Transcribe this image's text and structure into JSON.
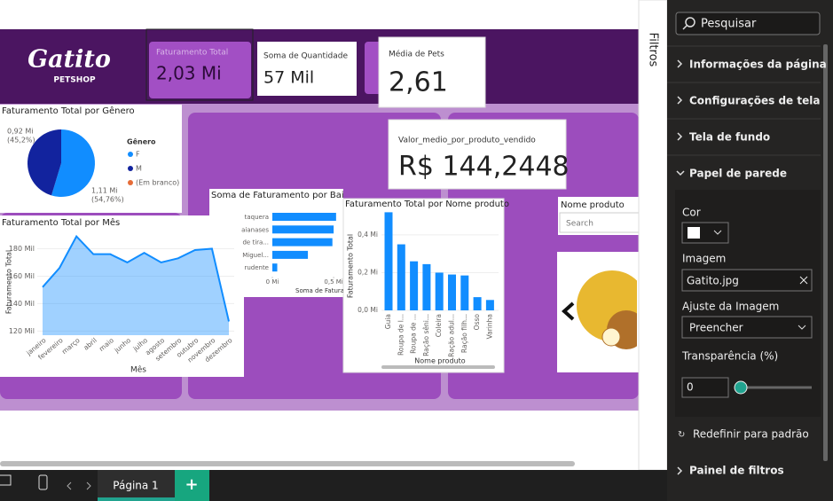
{
  "logo": {
    "name": "Gatito",
    "tagline": "PETSHOP"
  },
  "cards": [
    {
      "label": "Faturamento Total",
      "value": "2,03 Mi"
    },
    {
      "label": "Soma de Quantidade",
      "value": "57 Mil"
    },
    {
      "label": "Média de Pets",
      "value": "2,61"
    },
    {
      "label": "Valor_medio_por_produto_vendido",
      "value": "R$ 144,2448"
    }
  ],
  "pie": {
    "type": "pie",
    "title": "Faturamento Total por Gênero",
    "legend_title": "Gênero",
    "categories": [
      "F",
      "M",
      "(Em branco)"
    ],
    "values": [
      1.11,
      0.92,
      null
    ],
    "value_labels": [
      "1,11 Mi",
      "0,92 Mi",
      null
    ],
    "percent_labels": [
      "(54,76%)",
      "(45,2%)",
      null
    ],
    "colors": [
      "#118dff",
      "#12239e",
      "#e66c37"
    ]
  },
  "line": {
    "type": "line",
    "title": "Faturamento Total por Mês",
    "x_label": "Mês",
    "y_label": "Faturamento Total",
    "color": "#118dff",
    "categories": [
      "janeiro",
      "fevereiro",
      "março",
      "abril",
      "maio",
      "junho",
      "julho",
      "agosto",
      "setembro",
      "outubro",
      "novembro",
      "dezembro"
    ],
    "values": [
      152,
      166,
      189,
      176,
      176,
      170,
      177,
      170,
      173,
      179,
      180,
      127
    ],
    "ylim": [
      117,
      190
    ],
    "yticks": [
      {
        "value": 120,
        "label": "120 Mil"
      },
      {
        "value": 140,
        "label": "140 Mil"
      },
      {
        "value": 160,
        "label": "160 Mil"
      },
      {
        "value": 180,
        "label": "180 Mil"
      }
    ]
  },
  "bairro": {
    "type": "hbar",
    "title": "Soma de Faturamento por Bairro",
    "x_label": "Soma de Faturamento",
    "color": "#118dff",
    "categories": [
      "taquera",
      "aianases",
      "de tira...",
      "Miguel...",
      "rudente"
    ],
    "values": [
      0.52,
      0.5,
      0.49,
      0.29,
      0.04
    ],
    "xlim": [
      0,
      0.55
    ],
    "xticks": [
      {
        "value": 0,
        "label": "0 Mi"
      },
      {
        "value": 0.5,
        "label": "0,5 Mi"
      }
    ]
  },
  "produto": {
    "type": "bar",
    "title": "Faturamento Total por Nome produto",
    "x_label": "Nome produto",
    "y_label": "Faturamento Total",
    "color": "#118dff",
    "categories": [
      "Guia",
      "Roupa de l...",
      "Roupa de ...",
      "Ração sêni...",
      "Coleira",
      "Ração adul...",
      "Ração filh...",
      "Osso",
      "Varinha"
    ],
    "values": [
      0.52,
      0.35,
      0.26,
      0.245,
      0.2,
      0.19,
      0.185,
      0.07,
      0.055
    ],
    "ylim": [
      0,
      0.55
    ],
    "yticks": [
      {
        "value": 0,
        "label": "0,0 Mi"
      },
      {
        "value": 0.2,
        "label": "0,2 Mi"
      },
      {
        "value": 0.4,
        "label": "0,4 Mi"
      }
    ]
  },
  "slicer": {
    "title": "Nome produto",
    "placeholder": "Search"
  },
  "filters_tab": "Filtros",
  "panel": {
    "search": "Pesquisar",
    "sections_top": [
      "Informações da página",
      "Configurações de tela",
      "Tela de fundo",
      "Papel de parede"
    ],
    "color_label": "Cor",
    "image_label": "Imagem",
    "image_file": "Gatito.jpg",
    "fit_label": "Ajuste da Imagem",
    "fit_value": "Preencher",
    "transparency_label": "Transparência (%)",
    "transparency_value": "0",
    "reset": "Redefinir para padrão",
    "section_bottom": "Painel de filtros"
  },
  "footer": {
    "page_tab": "Página 1",
    "add": "+"
  }
}
